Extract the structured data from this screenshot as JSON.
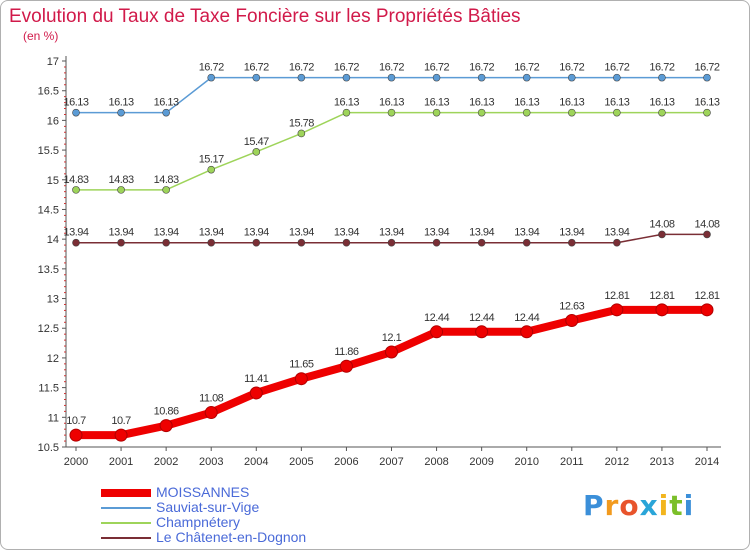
{
  "title": "Evolution du Taux de Taxe Foncière sur les Propriétés Bâties",
  "unit": "(en %)",
  "brand": {
    "letters": [
      {
        "char": "P",
        "color": "#3b8fd9"
      },
      {
        "char": "r",
        "color": "#f29a1e"
      },
      {
        "char": "o",
        "color": "#e8542c"
      },
      {
        "char": "x",
        "color": "#2aa5d8"
      },
      {
        "char": "i",
        "color": "#f2b51e"
      },
      {
        "char": "t",
        "color": "#7bbf2a"
      },
      {
        "char": "i",
        "color": "#3b8fd9"
      }
    ]
  },
  "chart_data": {
    "type": "line",
    "x": [
      "2000",
      "2001",
      "2002",
      "2003",
      "2004",
      "2005",
      "2006",
      "2007",
      "2008",
      "2009",
      "2010",
      "2011",
      "2012",
      "2013",
      "2014"
    ],
    "ylim": [
      10.5,
      17
    ],
    "yticks": [
      "10.5",
      "11",
      "11.5",
      "12",
      "12.5",
      "13",
      "13.5",
      "14",
      "14.5",
      "15",
      "15.5",
      "16",
      "16.5",
      "17"
    ],
    "grid": false,
    "legend_position": "bottom-left",
    "series": [
      {
        "name": "MOISSANNES",
        "color": "#ee0000",
        "emphasis": true,
        "values": [
          10.7,
          10.7,
          10.86,
          11.08,
          11.41,
          11.65,
          11.86,
          12.1,
          12.44,
          12.44,
          12.44,
          12.63,
          12.81,
          12.81,
          12.81
        ],
        "labels": [
          "10.7",
          "10.7",
          "10.86",
          "11.08",
          "11.41",
          "11.65",
          "11.86",
          "12.1",
          "12.44",
          "12.44",
          "12.44",
          "12.63",
          "12.81",
          "12.81",
          "12.81"
        ]
      },
      {
        "name": "Sauviat-sur-Vige",
        "color": "#5b9bd5",
        "emphasis": false,
        "values": [
          16.13,
          16.13,
          16.13,
          16.72,
          16.72,
          16.72,
          16.72,
          16.72,
          16.72,
          16.72,
          16.72,
          16.72,
          16.72,
          16.72,
          16.72
        ],
        "labels": [
          "16.13",
          "16.13",
          "16.13",
          "16.72",
          "16.72",
          "16.72",
          "16.72",
          "16.72",
          "16.72",
          "16.72",
          "16.72",
          "16.72",
          "16.72",
          "16.72",
          "16.72"
        ]
      },
      {
        "name": "Champnétery",
        "color": "#9ed45a",
        "emphasis": false,
        "values": [
          14.83,
          14.83,
          14.83,
          15.17,
          15.47,
          15.78,
          16.13,
          16.13,
          16.13,
          16.13,
          16.13,
          16.13,
          16.13,
          16.13,
          16.13
        ],
        "labels": [
          "14.83",
          "14.83",
          "14.83",
          "15.17",
          "15.47",
          "15.78",
          "16.13",
          "16.13",
          "16.13",
          "16.13",
          "16.13",
          "16.13",
          "16.13",
          "16.13",
          "16.13"
        ]
      },
      {
        "name": "Le Châtenet-en-Dognon",
        "color": "#7a2e35",
        "emphasis": false,
        "values": [
          13.94,
          13.94,
          13.94,
          13.94,
          13.94,
          13.94,
          13.94,
          13.94,
          13.94,
          13.94,
          13.94,
          13.94,
          13.94,
          14.08,
          14.08
        ],
        "labels": [
          "13.94",
          "13.94",
          "13.94",
          "13.94",
          "13.94",
          "13.94",
          "13.94",
          "13.94",
          "13.94",
          "13.94",
          "13.94",
          "13.94",
          "13.94",
          "14.08",
          "14.08"
        ]
      }
    ]
  }
}
